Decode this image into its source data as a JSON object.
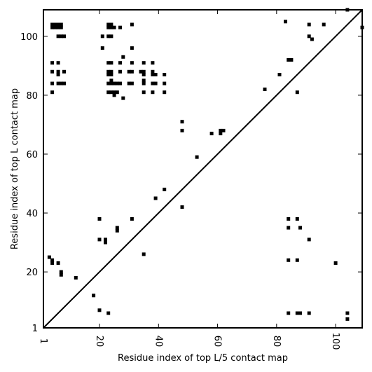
{
  "chart_data": {
    "type": "scatter",
    "title": "",
    "xlabel": "Residue index of top L/5 contact map",
    "ylabel": "Residue index of top L contact map",
    "xlim": [
      1,
      109
    ],
    "ylim": [
      1,
      109
    ],
    "x_ticks": [
      1,
      20,
      40,
      60,
      80,
      100
    ],
    "y_ticks": [
      1,
      20,
      40,
      60,
      80,
      100
    ],
    "x_tick_labels": [
      "1",
      "20",
      "40",
      "60",
      "80",
      "100"
    ],
    "y_tick_labels": [
      "1",
      "20",
      "40",
      "60",
      "80",
      "100"
    ],
    "grid": false,
    "diagonal": true,
    "marker": "square",
    "marker_color": "#000000",
    "series": [
      {
        "points": [
          [
            4,
            104
          ],
          [
            4,
            103
          ],
          [
            5,
            104
          ],
          [
            5,
            103
          ],
          [
            6,
            104
          ],
          [
            6,
            103
          ],
          [
            7,
            104
          ],
          [
            7,
            103
          ],
          [
            6,
            100
          ],
          [
            7,
            100
          ],
          [
            8,
            100
          ],
          [
            4,
            91
          ],
          [
            6,
            91
          ],
          [
            4,
            88
          ],
          [
            6,
            88
          ],
          [
            6,
            87
          ],
          [
            8,
            88
          ],
          [
            4,
            84
          ],
          [
            6,
            84
          ],
          [
            7,
            84
          ],
          [
            8,
            84
          ],
          [
            4,
            81
          ],
          [
            21,
            100
          ],
          [
            21,
            96
          ],
          [
            23,
            104
          ],
          [
            23,
            103
          ],
          [
            24,
            104
          ],
          [
            24,
            103
          ],
          [
            25,
            103
          ],
          [
            23,
            100
          ],
          [
            24,
            100
          ],
          [
            27,
            103
          ],
          [
            31,
            104
          ],
          [
            31,
            96
          ],
          [
            28,
            93
          ],
          [
            23,
            91
          ],
          [
            24,
            91
          ],
          [
            27,
            91
          ],
          [
            31,
            91
          ],
          [
            23,
            88
          ],
          [
            24,
            88
          ],
          [
            23,
            87
          ],
          [
            24,
            87
          ],
          [
            27,
            88
          ],
          [
            30,
            88
          ],
          [
            31,
            88
          ],
          [
            34,
            88
          ],
          [
            35,
            88
          ],
          [
            35,
            87
          ],
          [
            23,
            84
          ],
          [
            24,
            84
          ],
          [
            25,
            84
          ],
          [
            26,
            84
          ],
          [
            27,
            84
          ],
          [
            30,
            84
          ],
          [
            31,
            84
          ],
          [
            24,
            85
          ],
          [
            23,
            81
          ],
          [
            24,
            81
          ],
          [
            25,
            81
          ],
          [
            26,
            81
          ],
          [
            25,
            80
          ],
          [
            28,
            79
          ],
          [
            35,
            91
          ],
          [
            38,
            91
          ],
          [
            38,
            88
          ],
          [
            38,
            87
          ],
          [
            39,
            87
          ],
          [
            42,
            87
          ],
          [
            35,
            85
          ],
          [
            35,
            84
          ],
          [
            38,
            84
          ],
          [
            39,
            84
          ],
          [
            42,
            84
          ],
          [
            35,
            81
          ],
          [
            38,
            81
          ],
          [
            42,
            81
          ],
          [
            48,
            71
          ],
          [
            48,
            68
          ],
          [
            58,
            67
          ],
          [
            61,
            68
          ],
          [
            62,
            68
          ],
          [
            61,
            67
          ],
          [
            53,
            59
          ],
          [
            42,
            48
          ],
          [
            39,
            45
          ],
          [
            48,
            42
          ],
          [
            76,
            82
          ],
          [
            81,
            87
          ],
          [
            83,
            105
          ],
          [
            84,
            92
          ],
          [
            85,
            92
          ],
          [
            87,
            81
          ],
          [
            91,
            104
          ],
          [
            91,
            100
          ],
          [
            92,
            99
          ],
          [
            96,
            104
          ],
          [
            104,
            109
          ],
          [
            109,
            103
          ],
          [
            20,
            38
          ],
          [
            31,
            38
          ],
          [
            26,
            35
          ],
          [
            26,
            34
          ],
          [
            20,
            31
          ],
          [
            22,
            31
          ],
          [
            22,
            30
          ],
          [
            35,
            26
          ],
          [
            84,
            38
          ],
          [
            87,
            38
          ],
          [
            84,
            35
          ],
          [
            88,
            35
          ],
          [
            91,
            31
          ],
          [
            3,
            25
          ],
          [
            4,
            24
          ],
          [
            4,
            23
          ],
          [
            6,
            23
          ],
          [
            7,
            20
          ],
          [
            7,
            19
          ],
          [
            12,
            18
          ],
          [
            18,
            12
          ],
          [
            20,
            7
          ],
          [
            23,
            6
          ],
          [
            84,
            24
          ],
          [
            87,
            24
          ],
          [
            100,
            23
          ],
          [
            84,
            6
          ],
          [
            87,
            6
          ],
          [
            88,
            6
          ],
          [
            91,
            6
          ],
          [
            104,
            6
          ],
          [
            104,
            4
          ]
        ]
      }
    ]
  }
}
